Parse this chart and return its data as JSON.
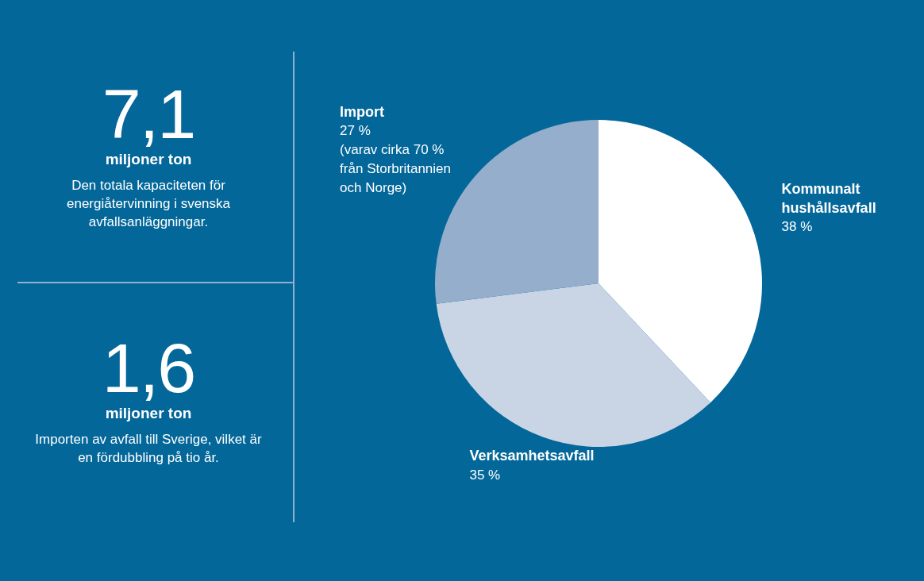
{
  "chart_data": [
    {
      "type": "other",
      "annotations": [
        "7,1",
        "miljoner ton",
        "Den totala kapaciteten för energiåtervinning i svenska avfallsanläggningar.",
        "1,6",
        "miljoner ton",
        "Importen av avfall till Sverige, vilket är en fördubbling på tio år."
      ]
    },
    {
      "type": "pie",
      "categories": [
        "Kommunalt hushållsavfall",
        "Verksamhetsavfall",
        "Import"
      ],
      "values": [
        38,
        35,
        27
      ],
      "colors": [
        "#ffffff",
        "#c9d5e5",
        "#94aecb"
      ],
      "value_labels": [
        "38 %",
        "35 %",
        "27 %"
      ],
      "annotations": [
        {
          "text": "(varav cirka 70 % från Storbritannien och Norge)",
          "x": "Import"
        }
      ],
      "legend": false
    }
  ]
}
